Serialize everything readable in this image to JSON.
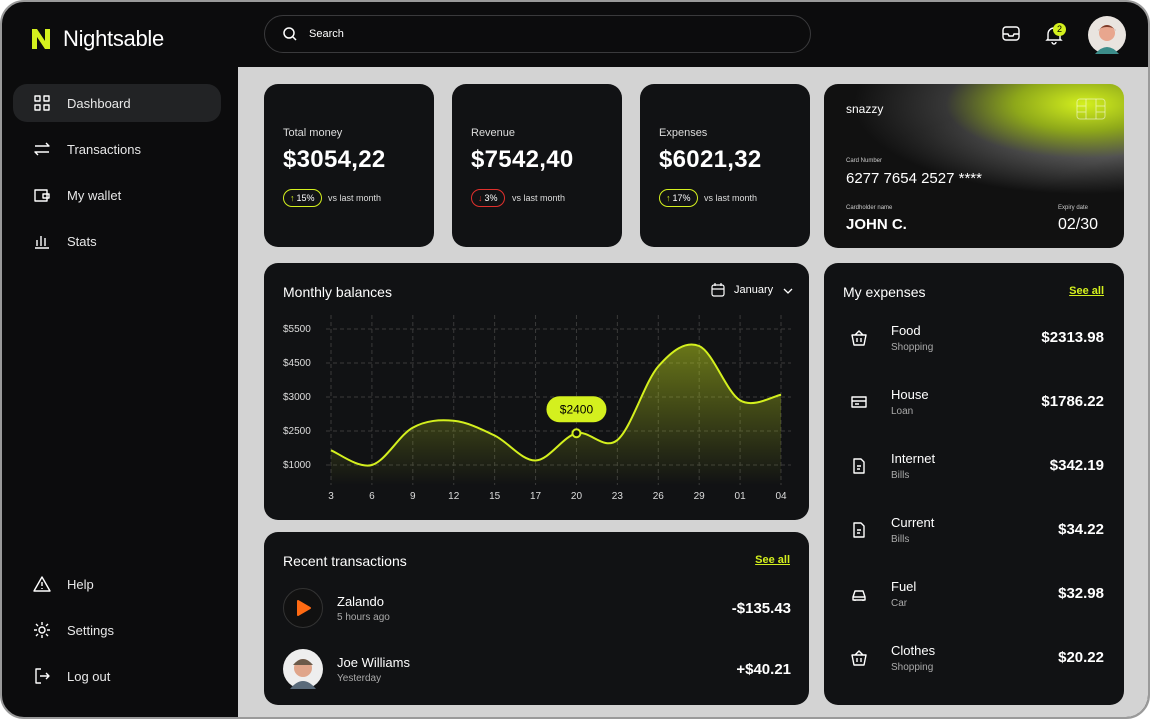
{
  "brand": "Nightsable",
  "nav": {
    "items": [
      "Dashboard",
      "Transactions",
      "My wallet",
      "Stats"
    ],
    "footer": [
      "Help",
      "Settings",
      "Log out"
    ]
  },
  "topbar": {
    "search": "Search",
    "notifications": "2"
  },
  "stats": [
    {
      "label": "Total money",
      "amount": "$3054,22",
      "change": "15%",
      "trend": "up",
      "note": "vs last month"
    },
    {
      "label": "Revenue",
      "amount": "$7542,40",
      "change": "3%",
      "trend": "down",
      "note": "vs last month"
    },
    {
      "label": "Expenses",
      "amount": "$6021,32",
      "change": "17%",
      "trend": "up",
      "note": "vs last month"
    }
  ],
  "card": {
    "brand": "snazzy",
    "number_label": "Card Number",
    "number": "6277 7654 2527 ****",
    "holder_label": "Cardholder name",
    "holder": "JOHN C.",
    "expiry_label": "Expiry date",
    "expiry": "02/30"
  },
  "monthly_balances": {
    "type": "line",
    "title": "Monthly balances",
    "month": "January",
    "categories": [
      "3",
      "6",
      "9",
      "12",
      "15",
      "17",
      "20",
      "23",
      "26",
      "29",
      "01",
      "04"
    ],
    "values": [
      1650,
      1000,
      2550,
      2650,
      2300,
      1200,
      2400,
      2100,
      4350,
      5000,
      2950,
      3100
    ],
    "value_labels": [
      null,
      null,
      null,
      null,
      null,
      null,
      "$2400",
      null,
      null,
      null,
      null,
      null
    ],
    "ylim": [
      1000,
      5500
    ],
    "yticks": [
      {
        "value": 1000,
        "label": "$1000"
      },
      {
        "value": 2500,
        "label": "$2500"
      },
      {
        "value": 3000,
        "label": "$3000"
      },
      {
        "value": 4500,
        "label": "$4500"
      },
      {
        "value": 5500,
        "label": "$5500"
      }
    ],
    "color": "#d4f01e",
    "grid": true
  },
  "recent_transactions": {
    "title": "Recent transactions",
    "see_all": "See all",
    "items": [
      {
        "name": "Zalando",
        "time": "5 hours ago",
        "amount": "-$135.43"
      },
      {
        "name": "Joe Williams",
        "time": "Yesterday",
        "amount": "+$40.21"
      }
    ]
  },
  "expenses": {
    "title": "My expenses",
    "see_all": "See all",
    "items": [
      {
        "name": "Food",
        "category": "Shopping",
        "amount": "$2313.98"
      },
      {
        "name": "House",
        "category": "Loan",
        "amount": "$1786.22"
      },
      {
        "name": "Internet",
        "category": "Bills",
        "amount": "$342.19"
      },
      {
        "name": "Current",
        "category": "Bills",
        "amount": "$34.22"
      },
      {
        "name": "Fuel",
        "category": "Car",
        "amount": "$32.98"
      },
      {
        "name": "Clothes",
        "category": "Shopping",
        "amount": "$20.22"
      }
    ]
  }
}
